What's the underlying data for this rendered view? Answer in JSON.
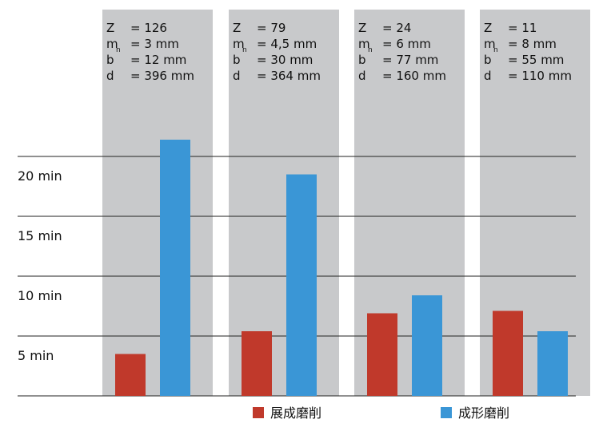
{
  "chart_data": {
    "type": "bar",
    "title": "",
    "xlabel": "",
    "ylabel": "",
    "ylim": [
      0,
      20
    ],
    "y_ticks": [
      {
        "value": 5,
        "label": "5 min"
      },
      {
        "value": 10,
        "label": "10 min"
      },
      {
        "value": 15,
        "label": "15 min"
      },
      {
        "value": 20,
        "label": "20 min"
      }
    ],
    "grid": true,
    "legend_position": "bottom",
    "categories": [
      {
        "specs": [
          {
            "key": "Z",
            "sub": "",
            "value": "= 126"
          },
          {
            "key": "m",
            "sub": "n",
            "value": "= 3 mm"
          },
          {
            "key": "b",
            "sub": "",
            "value": "= 12 mm"
          },
          {
            "key": "d",
            "sub": "",
            "value": "= 396 mm"
          }
        ]
      },
      {
        "specs": [
          {
            "key": "Z",
            "sub": "",
            "value": "= 79"
          },
          {
            "key": "m",
            "sub": "n",
            "value": "= 4,5 mm"
          },
          {
            "key": "b",
            "sub": "",
            "value": "= 30 mm"
          },
          {
            "key": "d",
            "sub": "",
            "value": "= 364 mm"
          }
        ]
      },
      {
        "specs": [
          {
            "key": "Z",
            "sub": "",
            "value": "= 24"
          },
          {
            "key": "m",
            "sub": "n",
            "value": "= 6 mm"
          },
          {
            "key": "b",
            "sub": "",
            "value": "= 77 mm"
          },
          {
            "key": "d",
            "sub": "",
            "value": "= 160 mm"
          }
        ]
      },
      {
        "specs": [
          {
            "key": "Z",
            "sub": "",
            "value": "= 11"
          },
          {
            "key": "m",
            "sub": "n",
            "value": "= 8 mm"
          },
          {
            "key": "b",
            "sub": "",
            "value": "= 55 mm"
          },
          {
            "key": "d",
            "sub": "",
            "value": "= 110 mm"
          }
        ]
      }
    ],
    "series": [
      {
        "name": "展成磨削",
        "color": "#c0392b",
        "values": [
          3.5,
          5.4,
          6.9,
          7.1
        ]
      },
      {
        "name": "成形磨削",
        "color": "#3a96d6",
        "values": [
          21.4,
          18.5,
          8.4,
          5.4
        ]
      }
    ],
    "colors": {
      "panel": "#c8c9cb",
      "gridline": "#222222"
    }
  }
}
